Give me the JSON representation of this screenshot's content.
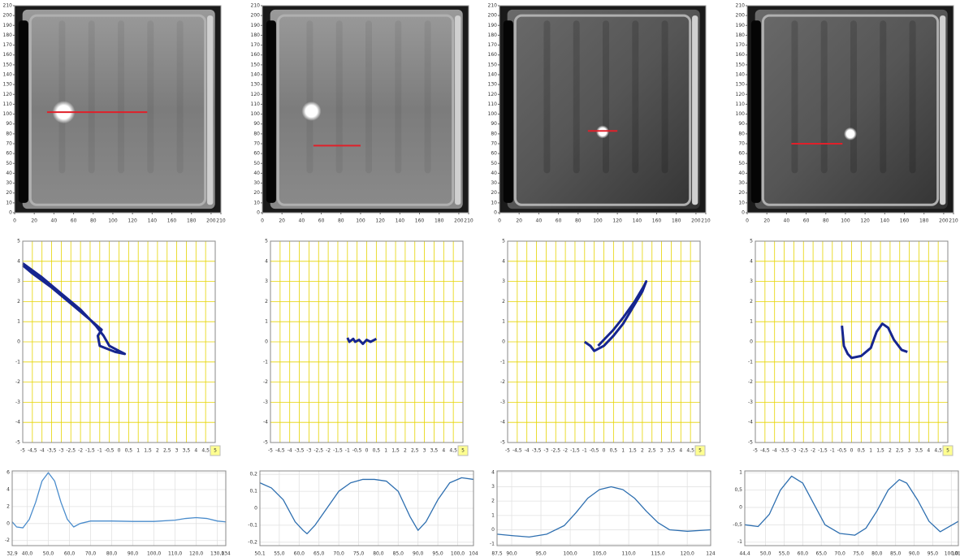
{
  "chart_data": [
    {
      "type": "image",
      "xlim": [
        0,
        210
      ],
      "ylim": [
        0,
        210
      ],
      "xticks": [
        0,
        20,
        40,
        60,
        80,
        100,
        120,
        140,
        160,
        180,
        200,
        210
      ],
      "yticks": [
        0,
        10,
        20,
        30,
        40,
        50,
        60,
        70,
        80,
        90,
        100,
        110,
        120,
        130,
        140,
        150,
        160,
        170,
        180,
        190,
        200,
        210
      ],
      "line_x": [
        33,
        135
      ],
      "line_y": 102,
      "color": "#e0202a"
    },
    {
      "type": "xy",
      "xlim": [
        -5,
        5
      ],
      "ylim": [
        -5,
        5
      ],
      "xticks": [
        -5,
        {
          "value": -4.5,
          "label": "-4,5"
        },
        -4,
        {
          "value": -3.5,
          "label": "-3,5"
        },
        -3,
        {
          "value": -2.5,
          "label": "-2,5"
        },
        -2,
        {
          "value": -1.5,
          "label": "-1,5"
        },
        -1,
        {
          "value": -0.5,
          "label": "-0,5"
        },
        0,
        {
          "value": 0.5,
          "label": "0,5"
        },
        1,
        {
          "value": 1.5,
          "label": "1,5"
        },
        2,
        {
          "value": 2.5,
          "label": "2,5"
        },
        3,
        {
          "value": 3.5,
          "label": "3,5"
        },
        4,
        {
          "value": 4.5,
          "label": "4,5"
        },
        5
      ],
      "yticks": [
        -5,
        -4,
        -3,
        -2,
        -1,
        0,
        1,
        2,
        3,
        4,
        5
      ],
      "x": [
        -5,
        -4,
        -3,
        -2,
        -1.2,
        -0.8,
        -0.5,
        0,
        0.3,
        -0.2,
        -1,
        -1.1,
        -0.9,
        -1.5,
        -2.5,
        -3.5,
        -4.5,
        -5
      ],
      "values": [
        3.9,
        3.2,
        2.4,
        1.6,
        0.8,
        0.3,
        -0.2,
        -0.45,
        -0.6,
        -0.5,
        -0.2,
        0.3,
        0.6,
        1.1,
        1.9,
        2.7,
        3.4,
        3.8
      ],
      "color": "#16258f"
    },
    {
      "type": "line",
      "xlim": [
        32.9,
        134
      ],
      "ylim": [
        -2.6,
        6.2
      ],
      "xticks": [
        {
          "value": 32.9,
          "label": "32,9"
        },
        {
          "value": 40,
          "label": "40,0"
        },
        {
          "value": 50,
          "label": "50,0"
        },
        {
          "value": 60,
          "label": "60,0"
        },
        {
          "value": 70,
          "label": "70,0"
        },
        {
          "value": 80,
          "label": "80,0"
        },
        {
          "value": 90,
          "label": "90,0"
        },
        {
          "value": 100,
          "label": "100,0"
        },
        {
          "value": 110,
          "label": "110,0"
        },
        {
          "value": 120,
          "label": "120,0"
        },
        {
          "value": 130,
          "label": "130,0"
        },
        134
      ],
      "yticks": [
        -2,
        0,
        2,
        4,
        6
      ],
      "x": [
        32.9,
        35,
        38,
        41,
        44,
        47,
        50,
        53,
        56,
        59,
        62,
        65,
        70,
        80,
        90,
        100,
        110,
        115,
        120,
        125,
        130,
        134
      ],
      "values": [
        0.2,
        -0.4,
        -0.5,
        0.5,
        2.5,
        5,
        6,
        5,
        2.5,
        0.5,
        -0.4,
        0,
        0.3,
        0.3,
        0.25,
        0.25,
        0.4,
        0.6,
        0.7,
        0.6,
        0.3,
        0.2
      ],
      "color": "#4a8ccc"
    },
    {
      "type": "image",
      "xlim": [
        0,
        210
      ],
      "ylim": [
        0,
        210
      ],
      "xticks": [
        0,
        20,
        40,
        60,
        80,
        100,
        120,
        140,
        160,
        180,
        200,
        210
      ],
      "yticks": [
        0,
        10,
        20,
        30,
        40,
        50,
        60,
        70,
        80,
        90,
        100,
        110,
        120,
        130,
        140,
        150,
        160,
        170,
        180,
        190,
        200,
        210
      ],
      "line_x": [
        52,
        100
      ],
      "line_y": 68,
      "color": "#e0202a"
    },
    {
      "type": "xy",
      "xlim": [
        -5,
        5
      ],
      "ylim": [
        -5,
        5
      ],
      "xticks": [
        -5,
        {
          "value": -4.5,
          "label": "-4,5"
        },
        -4,
        {
          "value": -3.5,
          "label": "-3,5"
        },
        -3,
        {
          "value": -2.5,
          "label": "-2,5"
        },
        -2,
        {
          "value": -1.5,
          "label": "-1,5"
        },
        -1,
        {
          "value": -0.5,
          "label": "-0,5"
        },
        0,
        {
          "value": 0.5,
          "label": "0,5"
        },
        1,
        {
          "value": 1.5,
          "label": "1,5"
        },
        2,
        {
          "value": 2.5,
          "label": "2,5"
        },
        3,
        {
          "value": 3.5,
          "label": "3,5"
        },
        4,
        {
          "value": 4.5,
          "label": "4,5"
        },
        5
      ],
      "yticks": [
        -5,
        -4,
        -3,
        -2,
        -1,
        0,
        1,
        2,
        3,
        4,
        5
      ],
      "x": [
        -1,
        -0.9,
        -0.7,
        -0.6,
        -0.4,
        -0.2,
        0,
        0.2,
        0.4,
        0.5
      ],
      "values": [
        0.2,
        0,
        0.15,
        0,
        0.1,
        -0.1,
        0.1,
        0,
        0.1,
        0.15
      ],
      "color": "#16258f"
    },
    {
      "type": "line",
      "xlim": [
        50.1,
        104
      ],
      "ylim": [
        -0.22,
        0.22
      ],
      "xticks": [
        {
          "value": 50.1,
          "label": "50,1"
        },
        {
          "value": 55,
          "label": "55,0"
        },
        {
          "value": 60,
          "label": "60,0"
        },
        {
          "value": 65,
          "label": "65,0"
        },
        {
          "value": 70,
          "label": "70,0"
        },
        {
          "value": 75,
          "label": "75,0"
        },
        {
          "value": 80,
          "label": "80,0"
        },
        {
          "value": 85,
          "label": "85,0"
        },
        {
          "value": 90,
          "label": "90,0"
        },
        {
          "value": 95,
          "label": "95,0"
        },
        {
          "value": 100,
          "label": "100,0"
        },
        104
      ],
      "yticks": [
        {
          "value": -0.2,
          "label": "-0,2"
        },
        {
          "value": -0.1,
          "label": "-0,1"
        },
        0,
        {
          "value": 0.1,
          "label": "0,1"
        },
        {
          "value": 0.2,
          "label": "0,2"
        }
      ],
      "x": [
        50.1,
        53,
        56,
        59,
        61,
        62,
        64,
        67,
        70,
        73,
        76,
        79,
        82,
        85,
        88,
        90,
        92,
        95,
        98,
        101,
        104
      ],
      "values": [
        0.15,
        0.12,
        0.05,
        -0.08,
        -0.13,
        -0.15,
        -0.1,
        0,
        0.1,
        0.15,
        0.17,
        0.17,
        0.16,
        0.1,
        -0.05,
        -0.13,
        -0.08,
        0.05,
        0.15,
        0.18,
        0.17
      ],
      "color": "#2e6fb0"
    },
    {
      "type": "image",
      "xlim": [
        0,
        210
      ],
      "ylim": [
        0,
        210
      ],
      "xticks": [
        0,
        20,
        40,
        60,
        80,
        100,
        120,
        140,
        160,
        180,
        200,
        210
      ],
      "yticks": [
        0,
        10,
        20,
        30,
        40,
        50,
        60,
        70,
        80,
        90,
        100,
        110,
        120,
        130,
        140,
        150,
        160,
        170,
        180,
        190,
        200,
        210
      ],
      "line_x": [
        90,
        120
      ],
      "line_y": 83,
      "color": "#e0202a"
    },
    {
      "type": "xy",
      "xlim": [
        -5,
        5
      ],
      "ylim": [
        -5,
        5
      ],
      "xticks": [
        -5,
        {
          "value": -4.5,
          "label": "-4,5"
        },
        -4,
        {
          "value": -3.5,
          "label": "-3,5"
        },
        -3,
        {
          "value": -2.5,
          "label": "-2,5"
        },
        -2,
        {
          "value": -1.5,
          "label": "-1,5"
        },
        -1,
        {
          "value": -0.5,
          "label": "-0,5"
        },
        0,
        {
          "value": 0.5,
          "label": "0,5"
        },
        1,
        {
          "value": 1.5,
          "label": "1,5"
        },
        2,
        {
          "value": 2.5,
          "label": "2,5"
        },
        3,
        {
          "value": 3.5,
          "label": "3,5"
        },
        4,
        {
          "value": 4.5,
          "label": "4,5"
        },
        5
      ],
      "yticks": [
        -5,
        -4,
        -3,
        -2,
        -1,
        0,
        1,
        2,
        3,
        4,
        5
      ],
      "x": [
        -1,
        -0.7,
        -0.5,
        -0.2,
        0,
        0.5,
        1,
        1.5,
        2,
        2.2,
        2.1,
        1.6,
        1,
        0.5,
        0,
        -0.3
      ],
      "values": [
        0,
        -0.2,
        -0.45,
        -0.3,
        -0.2,
        0.3,
        0.9,
        1.7,
        2.5,
        3,
        2.8,
        2,
        1.2,
        0.6,
        0.1,
        -0.2
      ],
      "color": "#16258f"
    },
    {
      "type": "line",
      "xlim": [
        87.5,
        124
      ],
      "ylim": [
        -1.1,
        4.1
      ],
      "xticks": [
        {
          "value": 87.5,
          "label": "87,5"
        },
        {
          "value": 90,
          "label": "90,0"
        },
        {
          "value": 95,
          "label": "95,0"
        },
        {
          "value": 100,
          "label": "100,0"
        },
        {
          "value": 105,
          "label": "105,0"
        },
        {
          "value": 110,
          "label": "110,0"
        },
        {
          "value": 115,
          "label": "115,0"
        },
        {
          "value": 120,
          "label": "120,0"
        },
        124
      ],
      "yticks": [
        -1,
        0,
        1,
        2,
        3,
        4
      ],
      "x": [
        87.5,
        90,
        93,
        96,
        99,
        101,
        103,
        105,
        107,
        109,
        111,
        113,
        115,
        117,
        120,
        124
      ],
      "values": [
        -0.3,
        -0.4,
        -0.5,
        -0.3,
        0.3,
        1.2,
        2.2,
        2.8,
        3,
        2.8,
        2.2,
        1.3,
        0.5,
        0,
        -0.1,
        0
      ],
      "color": "#2e6fb0"
    },
    {
      "type": "image",
      "xlim": [
        0,
        210
      ],
      "ylim": [
        0,
        210
      ],
      "xticks": [
        0,
        20,
        40,
        60,
        80,
        100,
        120,
        140,
        160,
        180,
        200,
        210
      ],
      "yticks": [
        0,
        10,
        20,
        30,
        40,
        50,
        60,
        70,
        80,
        90,
        100,
        110,
        120,
        130,
        140,
        150,
        160,
        170,
        180,
        190,
        200,
        210
      ],
      "line_x": [
        45,
        97
      ],
      "line_y": 70,
      "color": "#e0202a"
    },
    {
      "type": "xy",
      "xlim": [
        -5,
        5
      ],
      "ylim": [
        -5,
        5
      ],
      "xticks": [
        -5,
        {
          "value": -4.5,
          "label": "-4,5"
        },
        -4,
        {
          "value": -3.5,
          "label": "-3,5"
        },
        -3,
        {
          "value": -2.5,
          "label": "-2,5"
        },
        -2,
        {
          "value": -1.5,
          "label": "-1,5"
        },
        -1,
        {
          "value": -0.5,
          "label": "-0,5"
        },
        0,
        {
          "value": 0.5,
          "label": "0,5"
        },
        1,
        {
          "value": 1.5,
          "label": "1,5"
        },
        2,
        {
          "value": 2.5,
          "label": "2,5"
        },
        3,
        {
          "value": 3.5,
          "label": "3,5"
        },
        4,
        {
          "value": 4.5,
          "label": "4,5"
        },
        5
      ],
      "yticks": [
        -5,
        -4,
        -3,
        -2,
        -1,
        0,
        1,
        2,
        3,
        4,
        5
      ],
      "x": [
        -0.5,
        -0.4,
        -0.2,
        0,
        0.5,
        1,
        1.3,
        1.6,
        1.9,
        2.2,
        2.6,
        2.9
      ],
      "values": [
        0.8,
        -0.2,
        -0.6,
        -0.8,
        -0.7,
        -0.3,
        0.5,
        0.9,
        0.7,
        0.1,
        -0.4,
        -0.5
      ],
      "color": "#16258f"
    },
    {
      "type": "line",
      "xlim": [
        44.4,
        101.9
      ],
      "ylim": [
        -1.1,
        1.05
      ],
      "xticks": [
        {
          "value": 44.4,
          "label": "44,4"
        },
        {
          "value": 50,
          "label": "50,0"
        },
        {
          "value": 55,
          "label": "55,0"
        },
        {
          "value": 60,
          "label": "60,0"
        },
        {
          "value": 65,
          "label": "65,0"
        },
        {
          "value": 70,
          "label": "70,0"
        },
        {
          "value": 75,
          "label": "75,0"
        },
        {
          "value": 80,
          "label": "80,0"
        },
        {
          "value": 85,
          "label": "85,0"
        },
        {
          "value": 90,
          "label": "90,0"
        },
        {
          "value": 95,
          "label": "95,0"
        },
        {
          "value": 100,
          "label": "100,0"
        },
        {
          "value": 101.9,
          "label": "101,9"
        }
      ],
      "yticks": [
        -1,
        {
          "value": -0.5,
          "label": "-0,5"
        },
        0,
        {
          "value": 0.5,
          "label": "0,5"
        },
        1
      ],
      "x": [
        44.4,
        48,
        51,
        54,
        57,
        60,
        63,
        66,
        70,
        74,
        77,
        80,
        83,
        86,
        88,
        91,
        94,
        97,
        101.9
      ],
      "values": [
        -0.5,
        -0.55,
        -0.2,
        0.5,
        0.9,
        0.7,
        0.1,
        -0.5,
        -0.75,
        -0.8,
        -0.6,
        -0.1,
        0.5,
        0.8,
        0.7,
        0.2,
        -0.4,
        -0.7,
        -0.4
      ],
      "color": "#2e6fb0"
    }
  ]
}
